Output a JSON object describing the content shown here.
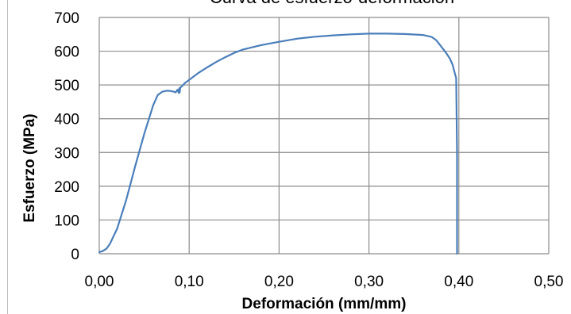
{
  "chart_data": {
    "type": "line",
    "title": "Curva de esfuerzo-deformación",
    "xlabel": "Deformación (mm/mm)",
    "ylabel": "Esfuerzo (MPa)",
    "xlim": [
      0,
      0.5
    ],
    "ylim": [
      0,
      700
    ],
    "x_ticks": [
      "0,00",
      "0,10",
      "0,20",
      "0,30",
      "0,40",
      "0,50"
    ],
    "y_ticks": [
      "0",
      "100",
      "200",
      "300",
      "400",
      "500",
      "600",
      "700"
    ],
    "grid": true,
    "legend": "none",
    "line_color": "#4a7ebb",
    "series": [
      {
        "x": [
          0.0,
          0.004,
          0.008,
          0.012,
          0.02,
          0.03,
          0.04,
          0.05,
          0.06,
          0.065,
          0.07,
          0.075,
          0.08,
          0.083,
          0.085,
          0.087,
          0.0885,
          0.089,
          0.0895,
          0.09,
          0.092,
          0.095,
          0.1,
          0.11,
          0.12,
          0.13,
          0.14,
          0.15,
          0.16,
          0.18,
          0.2,
          0.22,
          0.24,
          0.26,
          0.28,
          0.3,
          0.32,
          0.34,
          0.36,
          0.37,
          0.375,
          0.38,
          0.385,
          0.39,
          0.393,
          0.395,
          0.397,
          0.398,
          0.398,
          0.398
        ],
        "y": [
          5,
          8,
          15,
          30,
          75,
          160,
          260,
          355,
          440,
          470,
          480,
          483,
          482,
          480,
          478,
          486,
          476,
          490,
          478,
          492,
          496,
          505,
          515,
          535,
          552,
          568,
          582,
          595,
          605,
          618,
          628,
          637,
          643,
          647,
          650,
          652,
          652,
          651,
          648,
          642,
          632,
          615,
          598,
          578,
          560,
          540,
          520,
          300,
          100,
          0
        ]
      }
    ]
  }
}
